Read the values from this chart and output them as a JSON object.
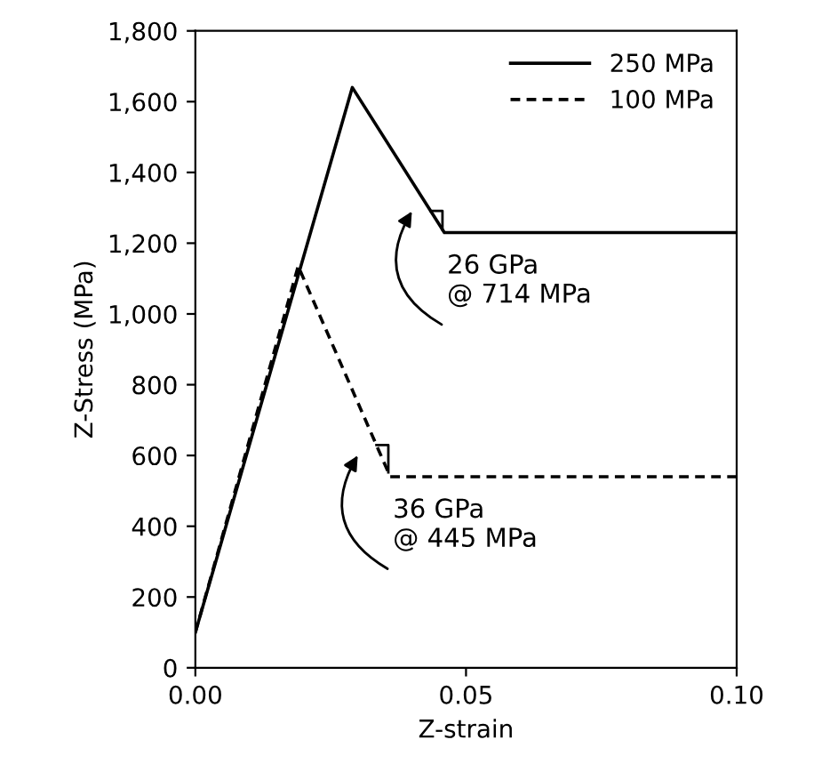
{
  "chart_data": {
    "type": "line",
    "xlabel": "Z-strain",
    "ylabel": "Z-Stress (MPa)",
    "xlim": [
      0,
      0.1
    ],
    "xticks": [
      {
        "value": 0,
        "label": "0.00"
      },
      {
        "value": 0.05,
        "label": "0.05"
      },
      {
        "value": 0.1,
        "label": "0.10"
      }
    ],
    "ylim": [
      0,
      1800
    ],
    "yticks": [
      {
        "value": 0,
        "label": "0"
      },
      {
        "value": 200,
        "label": "200"
      },
      {
        "value": 400,
        "label": "400"
      },
      {
        "value": 600,
        "label": "600"
      },
      {
        "value": 800,
        "label": "800"
      },
      {
        "value": 1000,
        "label": "1,000"
      },
      {
        "value": 1200,
        "label": "1,200"
      },
      {
        "value": 1400,
        "label": "1,400"
      },
      {
        "value": 1600,
        "label": "1,600"
      },
      {
        "value": 1800,
        "label": "1,800"
      }
    ],
    "grid": false,
    "legend": "top right",
    "series": [
      {
        "name": "250 MPa",
        "color": "#000000",
        "line_style": "solid",
        "x": [
          0,
          0.029,
          0.046,
          0.1
        ],
        "values": [
          100,
          1640,
          1230,
          1230
        ]
      },
      {
        "name": "100 MPa",
        "color": "#000000",
        "line_style": "dashed",
        "x": [
          0,
          0.019,
          0.036,
          0.1
        ],
        "values": [
          100,
          1135,
          540,
          540
        ]
      }
    ],
    "annotations": [
      "26 GPa\n@ 714 MPa",
      "36 GPa\n@ 445 MPa"
    ]
  }
}
